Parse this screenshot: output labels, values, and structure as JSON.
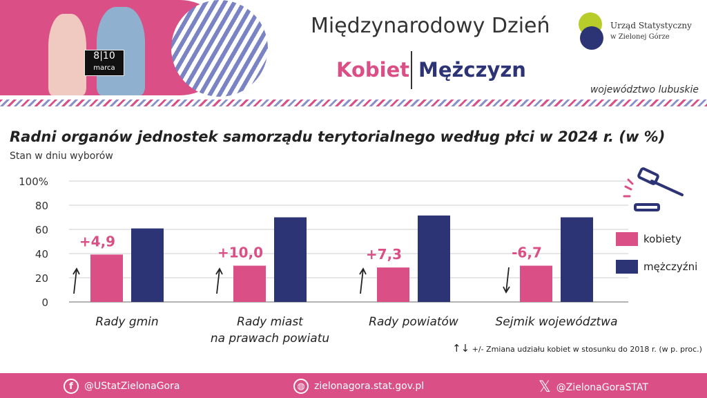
{
  "header": {
    "title_line1": "Międzynarodowy Dzień",
    "word_women": "Kobiet",
    "word_men": "Mężczyzn",
    "date_day1": "8",
    "date_day2": "10",
    "date_month": "marca",
    "org_line1": "Urząd Statystyczny",
    "org_line2": "w Zielonej Górze",
    "region": "województwo lubuskie"
  },
  "colors": {
    "women": "#d94f86",
    "men": "#2d3476",
    "accent": "#d94f86"
  },
  "chart_data": {
    "type": "bar",
    "title": "Radni organów jednostek samorządu terytorialnego według płci w 2024 r. (w %)",
    "subtitle": "Stan w dniu wyborów",
    "categories": [
      "Rady gmin",
      "Rady miast na prawach powiatu",
      "Rady powiatów",
      "Sejmik województwa"
    ],
    "category_lines": [
      [
        "Rady gmin"
      ],
      [
        "Rady miast",
        "na prawach powiatu"
      ],
      [
        "Rady powiatów"
      ],
      [
        "Sejmik województwa"
      ]
    ],
    "series": [
      {
        "name": "kobiety",
        "values": [
          39.2,
          30.0,
          28.5,
          30.0
        ]
      },
      {
        "name": "mężczyźni",
        "values": [
          60.8,
          70.0,
          71.5,
          70.0
        ]
      }
    ],
    "annotations": [
      "+4,9",
      "+10,0",
      "+7,3",
      "-6,7"
    ],
    "annotation_direction": [
      "up",
      "up",
      "up",
      "down"
    ],
    "ylim": [
      0,
      100
    ],
    "yticks": [
      "0",
      "20",
      "40",
      "60",
      "80",
      "100%"
    ],
    "grid": true,
    "legend_position": "right",
    "note": "+/- Zmiana udziału kobiet w stosunku do 2018 r. (w p. proc.)"
  },
  "footer": {
    "facebook": "@UStatZielonaGora",
    "website": "zielonagora.stat.gov.pl",
    "x": "@ZielonaGoraSTAT"
  }
}
